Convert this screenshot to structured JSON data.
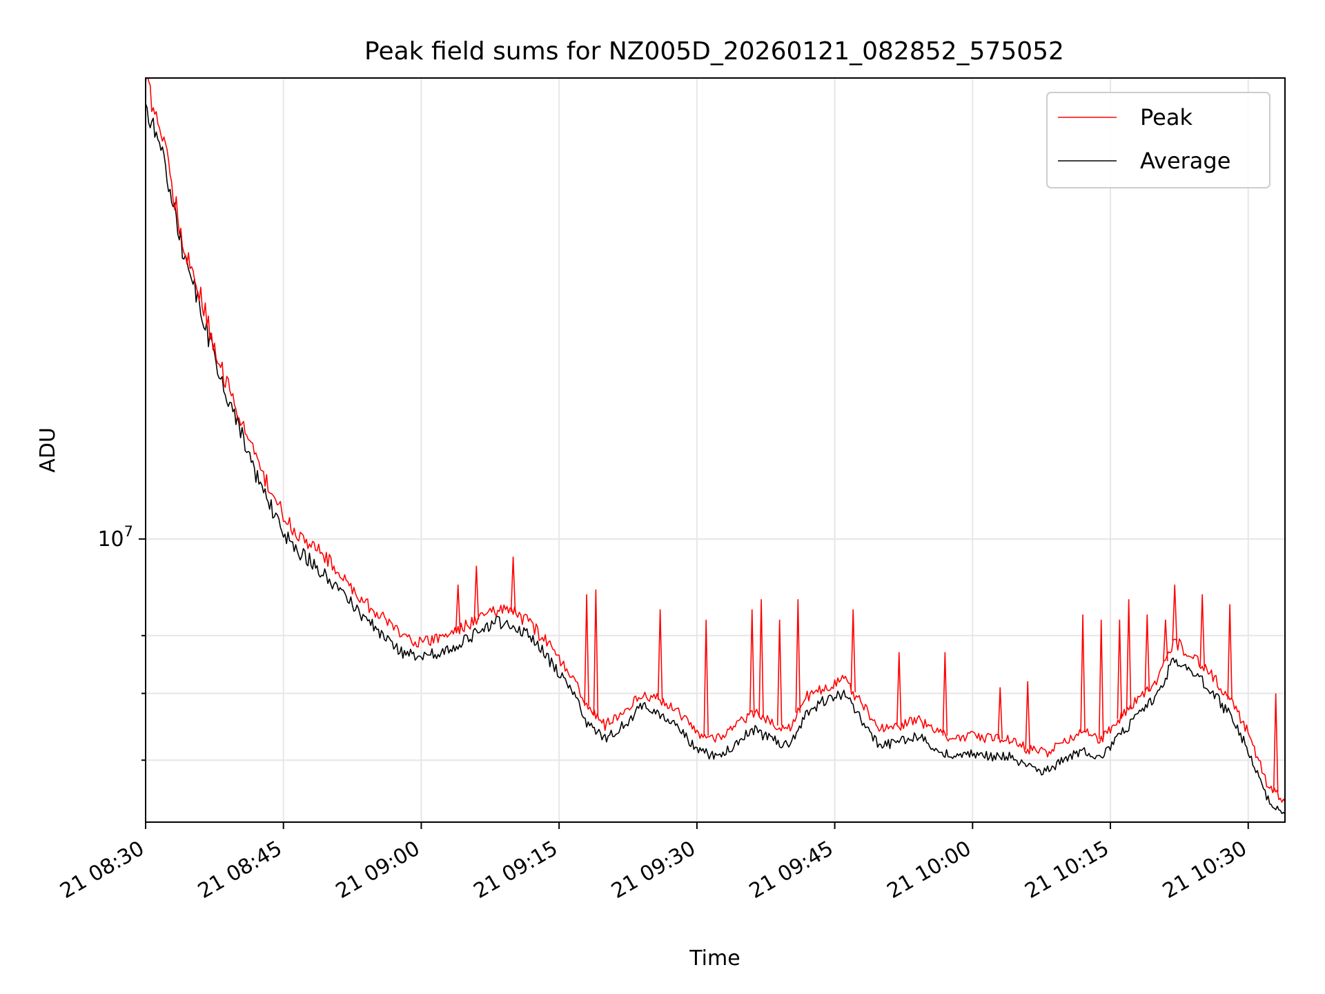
{
  "chart_data": {
    "type": "line",
    "title": "Peak field sums for NZ005D_20260121_082852_575052",
    "xlabel": "Time",
    "ylabel": "ADU",
    "y_scale": "log",
    "grid": true,
    "legend_position": "top-right",
    "x_ticks": [
      "21 08:30",
      "21 08:45",
      "21 09:00",
      "21 09:15",
      "21 09:30",
      "21 09:45",
      "21 10:00",
      "21 10:15",
      "21 10:30"
    ],
    "x_range": [
      "21 08:30",
      "21 10:34"
    ],
    "y_major_ticks": [
      {
        "value": 10000000,
        "base": "10",
        "exponent": "7"
      }
    ],
    "y_minor_ticks": [
      6000000,
      7000000,
      8000000
    ],
    "ylim": [
      5200000,
      29000000
    ],
    "series": [
      {
        "name": "Peak",
        "color": "#ff0000",
        "x": [
          "21 08:30",
          "21 08:32",
          "21 08:34",
          "21 08:36",
          "21 08:38",
          "21 08:40",
          "21 08:42",
          "21 08:44",
          "21 08:46",
          "21 08:48",
          "21 08:50",
          "21 08:52",
          "21 08:54",
          "21 08:56",
          "21 08:58",
          "21 09:00",
          "21 09:02",
          "21 09:04",
          "21 09:06",
          "21 09:08",
          "21 09:10",
          "21 09:12",
          "21 09:14",
          "21 09:16",
          "21 09:18",
          "21 09:20",
          "21 09:22",
          "21 09:24",
          "21 09:26",
          "21 09:28",
          "21 09:30",
          "21 09:32",
          "21 09:34",
          "21 09:36",
          "21 09:38",
          "21 09:40",
          "21 09:42",
          "21 09:44",
          "21 09:46",
          "21 09:48",
          "21 09:50",
          "21 09:52",
          "21 09:54",
          "21 09:56",
          "21 09:58",
          "21 10:00",
          "21 10:02",
          "21 10:04",
          "21 10:06",
          "21 10:08",
          "21 10:10",
          "21 10:12",
          "21 10:14",
          "21 10:16",
          "21 10:18",
          "21 10:20",
          "21 10:22",
          "21 10:24",
          "21 10:26",
          "21 10:28",
          "21 10:30",
          "21 10:32",
          "21 10:34"
        ],
        "y": [
          29000000,
          25000000,
          20000000,
          17500000,
          15000000,
          13500000,
          12000000,
          11000000,
          10200000,
          9900000,
          9500000,
          9000000,
          8600000,
          8300000,
          8000000,
          7850000,
          7950000,
          8100000,
          8300000,
          8500000,
          8450000,
          8200000,
          7800000,
          7400000,
          6800000,
          6500000,
          6700000,
          7000000,
          6900000,
          6700000,
          6400000,
          6300000,
          6450000,
          6700000,
          6550000,
          6450000,
          6950000,
          7100000,
          7250000,
          6800000,
          6450000,
          6500000,
          6600000,
          6400000,
          6300000,
          6350000,
          6300000,
          6300000,
          6150000,
          6100000,
          6250000,
          6400000,
          6300000,
          6600000,
          6900000,
          7200000,
          7900000,
          7600000,
          7300000,
          6900000,
          6400000,
          5700000,
          5450000
        ]
      },
      {
        "name": "Average",
        "color": "#000000",
        "x": [
          "21 08:30",
          "21 08:32",
          "21 08:34",
          "21 08:36",
          "21 08:38",
          "21 08:40",
          "21 08:42",
          "21 08:44",
          "21 08:46",
          "21 08:48",
          "21 08:50",
          "21 08:52",
          "21 08:54",
          "21 08:56",
          "21 08:58",
          "21 09:00",
          "21 09:02",
          "21 09:04",
          "21 09:06",
          "21 09:08",
          "21 09:10",
          "21 09:12",
          "21 09:14",
          "21 09:16",
          "21 09:18",
          "21 09:20",
          "21 09:22",
          "21 09:24",
          "21 09:26",
          "21 09:28",
          "21 09:30",
          "21 09:32",
          "21 09:34",
          "21 09:36",
          "21 09:38",
          "21 09:40",
          "21 09:42",
          "21 09:44",
          "21 09:46",
          "21 09:48",
          "21 09:50",
          "21 09:52",
          "21 09:54",
          "21 09:56",
          "21 09:58",
          "21 10:00",
          "21 10:02",
          "21 10:04",
          "21 10:06",
          "21 10:08",
          "21 10:10",
          "21 10:12",
          "21 10:14",
          "21 10:16",
          "21 10:18",
          "21 10:20",
          "21 10:22",
          "21 10:24",
          "21 10:26",
          "21 10:28",
          "21 10:30",
          "21 10:32",
          "21 10:34"
        ],
        "y": [
          27000000,
          24000000,
          19500000,
          17000000,
          14600000,
          13100000,
          11600000,
          10600000,
          9800000,
          9500000,
          9100000,
          8700000,
          8300000,
          8000000,
          7700000,
          7600000,
          7700000,
          7850000,
          8050000,
          8250000,
          8200000,
          7950000,
          7550000,
          7150000,
          6550000,
          6300000,
          6500000,
          6800000,
          6650000,
          6450000,
          6150000,
          6050000,
          6200000,
          6450000,
          6300000,
          6200000,
          6700000,
          6900000,
          7000000,
          6550000,
          6200000,
          6250000,
          6350000,
          6150000,
          6050000,
          6100000,
          6050000,
          6050000,
          5900000,
          5850000,
          6000000,
          6150000,
          6050000,
          6350000,
          6650000,
          6950000,
          7600000,
          7350000,
          7050000,
          6650000,
          6150000,
          5500000,
          5300000
        ]
      }
    ],
    "spikes": {
      "Peak": [
        [
          "21 09:04",
          9000000
        ],
        [
          "21 09:06",
          9400000
        ],
        [
          "21 09:10",
          9600000
        ],
        [
          "21 09:18",
          8800000
        ],
        [
          "21 09:19",
          8900000
        ],
        [
          "21 09:26",
          8500000
        ],
        [
          "21 09:31",
          8300000
        ],
        [
          "21 09:36",
          8500000
        ],
        [
          "21 09:37",
          8700000
        ],
        [
          "21 09:39",
          8300000
        ],
        [
          "21 09:41",
          8700000
        ],
        [
          "21 09:47",
          8500000
        ],
        [
          "21 09:52",
          7700000
        ],
        [
          "21 09:57",
          7700000
        ],
        [
          "21 10:03",
          7100000
        ],
        [
          "21 10:06",
          7200000
        ],
        [
          "21 10:12",
          8400000
        ],
        [
          "21 10:14",
          8300000
        ],
        [
          "21 10:16",
          8300000
        ],
        [
          "21 10:17",
          8700000
        ],
        [
          "21 10:19",
          8400000
        ],
        [
          "21 10:21",
          8300000
        ],
        [
          "21 10:22",
          9000000
        ],
        [
          "21 10:25",
          8800000
        ],
        [
          "21 10:28",
          8600000
        ],
        [
          "21 10:33",
          7000000
        ]
      ]
    }
  }
}
